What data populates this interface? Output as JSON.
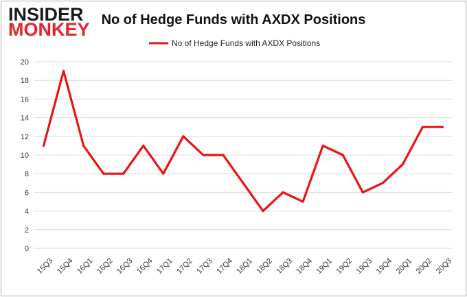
{
  "logo": {
    "line1": "INSIDER",
    "line2": "MONKEY"
  },
  "colors": {
    "line": "#ee1111",
    "logo_red": "#e8212b",
    "grid": "#d9d9d9",
    "border": "#aaaaaa"
  },
  "chart_data": {
    "type": "line",
    "title": "No of Hedge Funds with AXDX Positions",
    "xlabel": "",
    "ylabel": "",
    "legend": "top-center",
    "grid": true,
    "ylim": [
      0,
      20
    ],
    "yticks": [
      "0",
      "2",
      "4",
      "6",
      "8",
      "10",
      "12",
      "14",
      "16",
      "18",
      "20"
    ],
    "categories": [
      "15Q3",
      "15Q4",
      "16Q1",
      "16Q2",
      "16Q3",
      "16Q4",
      "17Q1",
      "17Q2",
      "17Q3",
      "17Q4",
      "18Q1",
      "18Q2",
      "18Q3",
      "18Q4",
      "19Q1",
      "19Q2",
      "19Q3",
      "19Q4",
      "20Q1",
      "20Q2",
      "20Q3"
    ],
    "series": [
      {
        "name": "No of Hedge Funds with AXDX Positions",
        "values": [
          11,
          19,
          11,
          8,
          8,
          11,
          8,
          12,
          10,
          10,
          7,
          4,
          6,
          5,
          11,
          10,
          6,
          7,
          9,
          13,
          13
        ]
      }
    ]
  }
}
